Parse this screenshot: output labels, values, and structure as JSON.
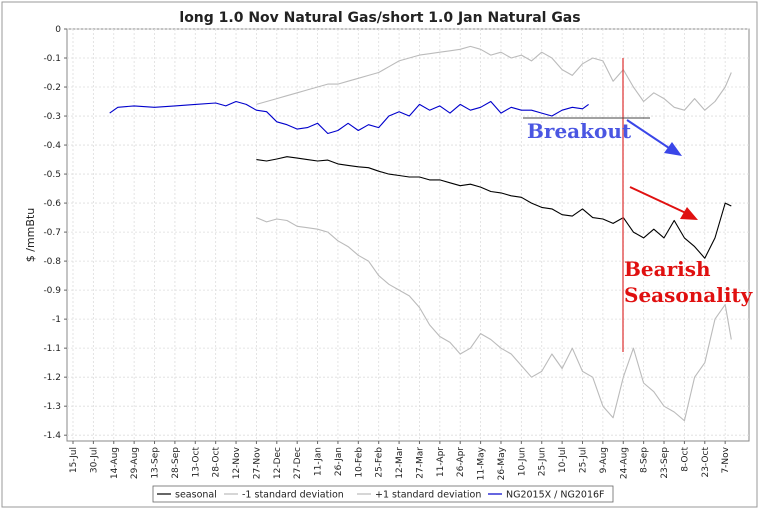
{
  "chart_data": {
    "type": "line",
    "title": "long 1.0 Nov Natural Gas/short 1.0 Jan Natural Gas",
    "ylabel": "$ /mmBtu",
    "ylim": [
      -1.42,
      0
    ],
    "yticks": [
      0,
      -0.1,
      -0.2,
      -0.3,
      -0.4,
      -0.5,
      -0.6,
      -0.7,
      -0.8,
      -0.9,
      -1,
      -1.1,
      -1.2,
      -1.3,
      -1.4
    ],
    "ytick_labels": [
      "0",
      "-0.1",
      "-0.2",
      "-0.3",
      "-0.4",
      "-0.5",
      "-0.6",
      "-0.7",
      "-0.8",
      "-0.9",
      "-1",
      "-1.1",
      "-1.2",
      "-1.3",
      "-1.4"
    ],
    "xticks": [
      "15-Jul",
      "30-Jul",
      "14-Aug",
      "29-Aug",
      "13-Sep",
      "28-Sep",
      "13-Oct",
      "28-Oct",
      "12-Nov",
      "27-Nov",
      "12-Dec",
      "27-Dec",
      "11-Jan",
      "26-Jan",
      "10-Feb",
      "25-Feb",
      "12-Mar",
      "27-Mar",
      "11-Apr",
      "26-Apr",
      "11-May",
      "26-May",
      "10-Jun",
      "25-Jun",
      "10-Jul",
      "25-Jul",
      "9-Aug",
      "24-Aug",
      "8-Sep",
      "23-Sep",
      "8-Oct",
      "23-Oct",
      "7-Nov"
    ],
    "grid": true,
    "legend_position": "bottom",
    "series": [
      {
        "name": "seasonal",
        "color": "#000000",
        "points": [
          [
            9,
            -0.45
          ],
          [
            9.5,
            -0.455
          ],
          [
            10,
            -0.448
          ],
          [
            10.5,
            -0.44
          ],
          [
            11,
            -0.445
          ],
          [
            11.5,
            -0.45
          ],
          [
            12,
            -0.455
          ],
          [
            12.5,
            -0.452
          ],
          [
            13,
            -0.465
          ],
          [
            13.5,
            -0.47
          ],
          [
            14,
            -0.475
          ],
          [
            14.5,
            -0.478
          ],
          [
            15,
            -0.49
          ],
          [
            15.5,
            -0.5
          ],
          [
            16,
            -0.505
          ],
          [
            16.5,
            -0.51
          ],
          [
            17,
            -0.51
          ],
          [
            17.5,
            -0.52
          ],
          [
            18,
            -0.52
          ],
          [
            18.5,
            -0.53
          ],
          [
            19,
            -0.54
          ],
          [
            19.5,
            -0.535
          ],
          [
            20,
            -0.545
          ],
          [
            20.5,
            -0.56
          ],
          [
            21,
            -0.565
          ],
          [
            21.5,
            -0.575
          ],
          [
            22,
            -0.58
          ],
          [
            22.5,
            -0.6
          ],
          [
            23,
            -0.615
          ],
          [
            23.5,
            -0.62
          ],
          [
            24,
            -0.64
          ],
          [
            24.5,
            -0.645
          ],
          [
            25,
            -0.62
          ],
          [
            25.5,
            -0.65
          ],
          [
            26,
            -0.655
          ],
          [
            26.5,
            -0.67
          ],
          [
            27,
            -0.65
          ],
          [
            27.5,
            -0.7
          ],
          [
            28,
            -0.72
          ],
          [
            28.5,
            -0.69
          ],
          [
            29,
            -0.72
          ],
          [
            29.5,
            -0.66
          ],
          [
            30,
            -0.72
          ],
          [
            30.5,
            -0.75
          ],
          [
            31,
            -0.79
          ],
          [
            31.5,
            -0.72
          ],
          [
            32,
            -0.6
          ],
          [
            32.3,
            -0.61
          ]
        ]
      },
      {
        "name": "-1 standard deviation",
        "color": "#bbbbbb",
        "points": [
          [
            9,
            -0.65
          ],
          [
            9.5,
            -0.665
          ],
          [
            10,
            -0.655
          ],
          [
            10.5,
            -0.66
          ],
          [
            11,
            -0.68
          ],
          [
            11.5,
            -0.685
          ],
          [
            12,
            -0.69
          ],
          [
            12.5,
            -0.7
          ],
          [
            13,
            -0.73
          ],
          [
            13.5,
            -0.75
          ],
          [
            14,
            -0.78
          ],
          [
            14.5,
            -0.8
          ],
          [
            15,
            -0.85
          ],
          [
            15.5,
            -0.88
          ],
          [
            16,
            -0.9
          ],
          [
            16.5,
            -0.92
          ],
          [
            17,
            -0.96
          ],
          [
            17.5,
            -1.02
          ],
          [
            18,
            -1.06
          ],
          [
            18.5,
            -1.08
          ],
          [
            19,
            -1.12
          ],
          [
            19.5,
            -1.1
          ],
          [
            20,
            -1.05
          ],
          [
            20.5,
            -1.07
          ],
          [
            21,
            -1.1
          ],
          [
            21.5,
            -1.12
          ],
          [
            22,
            -1.16
          ],
          [
            22.5,
            -1.2
          ],
          [
            23,
            -1.18
          ],
          [
            23.5,
            -1.12
          ],
          [
            24,
            -1.17
          ],
          [
            24.5,
            -1.1
          ],
          [
            25,
            -1.18
          ],
          [
            25.5,
            -1.2
          ],
          [
            26,
            -1.3
          ],
          [
            26.5,
            -1.34
          ],
          [
            27,
            -1.2
          ],
          [
            27.5,
            -1.1
          ],
          [
            28,
            -1.22
          ],
          [
            28.5,
            -1.25
          ],
          [
            29,
            -1.3
          ],
          [
            29.5,
            -1.32
          ],
          [
            30,
            -1.35
          ],
          [
            30.5,
            -1.2
          ],
          [
            31,
            -1.15
          ],
          [
            31.5,
            -1.0
          ],
          [
            32,
            -0.95
          ],
          [
            32.3,
            -1.07
          ]
        ]
      },
      {
        "name": "+1 standard deviation",
        "color": "#bbbbbb",
        "points": [
          [
            9,
            -0.26
          ],
          [
            9.5,
            -0.25
          ],
          [
            10,
            -0.24
          ],
          [
            10.5,
            -0.23
          ],
          [
            11,
            -0.22
          ],
          [
            11.5,
            -0.21
          ],
          [
            12,
            -0.2
          ],
          [
            12.5,
            -0.19
          ],
          [
            13,
            -0.19
          ],
          [
            13.5,
            -0.18
          ],
          [
            14,
            -0.17
          ],
          [
            14.5,
            -0.16
          ],
          [
            15,
            -0.15
          ],
          [
            15.5,
            -0.13
          ],
          [
            16,
            -0.11
          ],
          [
            16.5,
            -0.1
          ],
          [
            17,
            -0.09
          ],
          [
            17.5,
            -0.085
          ],
          [
            18,
            -0.08
          ],
          [
            18.5,
            -0.075
          ],
          [
            19,
            -0.07
          ],
          [
            19.5,
            -0.06
          ],
          [
            20,
            -0.07
          ],
          [
            20.5,
            -0.09
          ],
          [
            21,
            -0.08
          ],
          [
            21.5,
            -0.1
          ],
          [
            22,
            -0.09
          ],
          [
            22.5,
            -0.11
          ],
          [
            23,
            -0.08
          ],
          [
            23.5,
            -0.1
          ],
          [
            24,
            -0.14
          ],
          [
            24.5,
            -0.16
          ],
          [
            25,
            -0.12
          ],
          [
            25.5,
            -0.1
          ],
          [
            26,
            -0.11
          ],
          [
            26.5,
            -0.18
          ],
          [
            27,
            -0.14
          ],
          [
            27.5,
            -0.2
          ],
          [
            28,
            -0.25
          ],
          [
            28.5,
            -0.22
          ],
          [
            29,
            -0.24
          ],
          [
            29.5,
            -0.27
          ],
          [
            30,
            -0.28
          ],
          [
            30.5,
            -0.24
          ],
          [
            31,
            -0.28
          ],
          [
            31.5,
            -0.25
          ],
          [
            32,
            -0.2
          ],
          [
            32.3,
            -0.15
          ]
        ]
      },
      {
        "name": "NG2015X / NG2016F",
        "color": "#0000cc",
        "points": [
          [
            1.8,
            -0.29
          ],
          [
            2.2,
            -0.27
          ],
          [
            3,
            -0.265
          ],
          [
            4,
            -0.27
          ],
          [
            5,
            -0.265
          ],
          [
            6,
            -0.26
          ],
          [
            7,
            -0.255
          ],
          [
            7.5,
            -0.265
          ],
          [
            8,
            -0.25
          ],
          [
            8.5,
            -0.26
          ],
          [
            9,
            -0.28
          ],
          [
            9.5,
            -0.285
          ],
          [
            10,
            -0.32
          ],
          [
            10.5,
            -0.33
          ],
          [
            11,
            -0.345
          ],
          [
            11.5,
            -0.34
          ],
          [
            12,
            -0.325
          ],
          [
            12.5,
            -0.36
          ],
          [
            13,
            -0.35
          ],
          [
            13.5,
            -0.325
          ],
          [
            14,
            -0.35
          ],
          [
            14.5,
            -0.33
          ],
          [
            15,
            -0.34
          ],
          [
            15.5,
            -0.3
          ],
          [
            16,
            -0.285
          ],
          [
            16.5,
            -0.3
          ],
          [
            17,
            -0.26
          ],
          [
            17.5,
            -0.28
          ],
          [
            18,
            -0.265
          ],
          [
            18.5,
            -0.29
          ],
          [
            19,
            -0.26
          ],
          [
            19.5,
            -0.28
          ],
          [
            20,
            -0.27
          ],
          [
            20.5,
            -0.25
          ],
          [
            21,
            -0.29
          ],
          [
            21.5,
            -0.27
          ],
          [
            22,
            -0.28
          ],
          [
            22.5,
            -0.28
          ],
          [
            23,
            -0.29
          ],
          [
            23.5,
            -0.3
          ],
          [
            24,
            -0.28
          ],
          [
            24.5,
            -0.27
          ],
          [
            25,
            -0.275
          ],
          [
            25.3,
            -0.26
          ]
        ]
      }
    ],
    "annotations": {
      "breakout_label": "Breakout",
      "bearish_label_line1": "Bearish",
      "bearish_label_line2": "Seasonality"
    }
  }
}
